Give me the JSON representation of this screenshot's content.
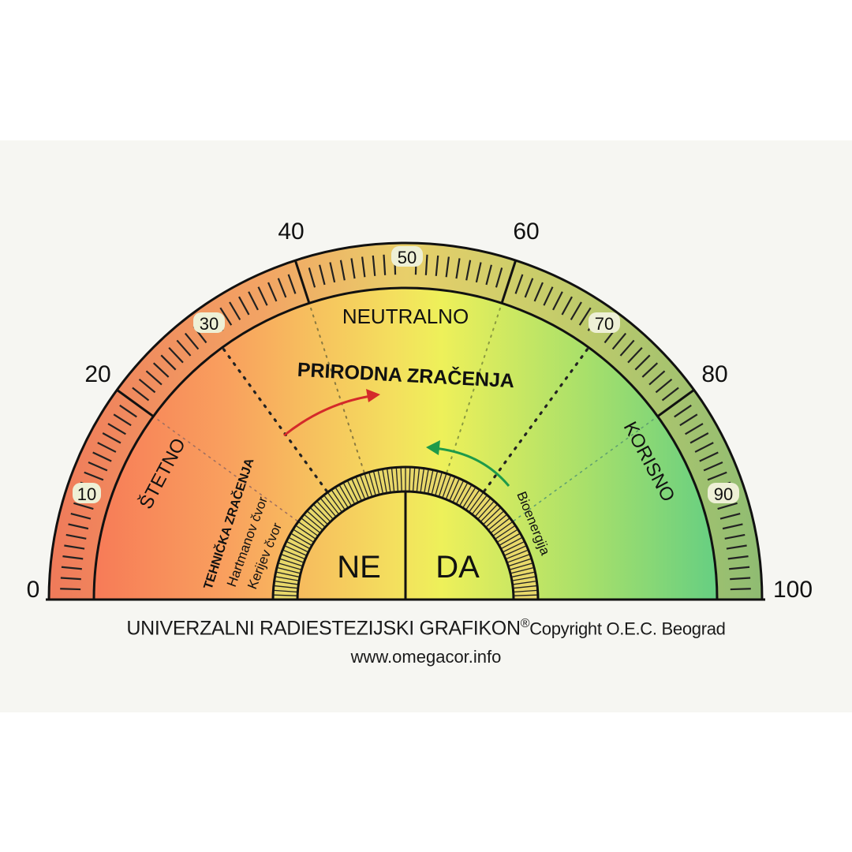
{
  "diagram": {
    "title": "UNIVERZALNI RADIESTEZIJSKI GRAFIKON",
    "registered_mark": "®",
    "copyright": "Copyright O.E.C. Beograd",
    "url": "www.omegacor.info",
    "scale_outer_labels": [
      "0",
      "20",
      "40",
      "60",
      "80",
      "100"
    ],
    "scale_inner_labels": [
      "10",
      "30",
      "50",
      "70",
      "90"
    ],
    "zones": {
      "harmful": "ŠTETNO",
      "neutral": "NEUTRALNO",
      "beneficial": "KORISNO"
    },
    "center_heading": "PRIRODNA ZRAČENJA",
    "left_labels": {
      "technical": "TEHNIČKA ZRAČENJA",
      "hartmann": "Hartmanov čvor",
      "curry": "Kerijev čvor"
    },
    "right_label": "Bioenergija",
    "answer_no": "NE",
    "answer_yes": "DA",
    "colors": {
      "harmful": "#f58a5a",
      "neutral": "#f2ec5a",
      "beneficial": "#5fce7c",
      "arrow_red": "#d42a2a",
      "arrow_green": "#1e9a4a"
    }
  }
}
